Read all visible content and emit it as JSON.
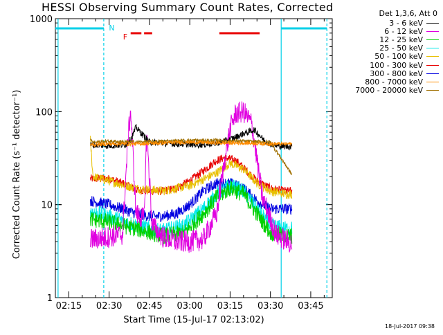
{
  "chart_data": {
    "type": "line",
    "title": "HESSI Observing Summary Count Rates, Corrected",
    "xlabel": "Start Time (15-Jul-17 02:13:02)",
    "ylabel": "Corrected Count Rate (s⁻¹ detector⁻¹)",
    "y_scale": "log",
    "ylim": [
      1,
      1000
    ],
    "xlim": [
      "02:10",
      "03:53"
    ],
    "x_ticks": [
      "02:15",
      "02:30",
      "02:45",
      "03:00",
      "03:15",
      "03:30",
      "03:45"
    ],
    "y_ticks": [
      "1",
      "10",
      "100",
      "1000"
    ],
    "legend_title": "Det 1,3,6, Att 0",
    "legend_position": "top-right",
    "series": [
      {
        "name": "3 - 6 keV",
        "color": "#000000",
        "x": [
          "02:23",
          "02:30",
          "02:36",
          "02:38",
          "02:40",
          "02:45",
          "02:55",
          "03:05",
          "03:10",
          "03:15",
          "03:20",
          "03:24",
          "03:28",
          "03:32",
          "03:38"
        ],
        "values": [
          44,
          43,
          44,
          50,
          68,
          47,
          45,
          44,
          46,
          50,
          58,
          64,
          48,
          43,
          42
        ]
      },
      {
        "name": "6 - 12 keV",
        "color": "#e000e0",
        "x": [
          "02:23",
          "02:30",
          "02:35",
          "02:37",
          "02:38",
          "02:40",
          "02:43",
          "02:44",
          "02:46",
          "02:50",
          "02:55",
          "03:00",
          "03:05",
          "03:10",
          "03:13",
          "03:15",
          "03:17",
          "03:20",
          "03:23",
          "03:27",
          "03:32",
          "03:38"
        ],
        "values": [
          4.2,
          4.5,
          4.8,
          50,
          105,
          8,
          7,
          62,
          6,
          4.5,
          4,
          4,
          4.2,
          8,
          30,
          65,
          95,
          100,
          75,
          12,
          4.8,
          3.8
        ]
      },
      {
        "name": "12 - 25 keV",
        "color": "#00d000",
        "x": [
          "02:23",
          "02:30",
          "02:40",
          "02:50",
          "02:58",
          "03:05",
          "03:10",
          "03:15",
          "03:20",
          "03:25",
          "03:30",
          "03:35",
          "03:38"
        ],
        "values": [
          7,
          6.5,
          5.5,
          4.6,
          5,
          8,
          12,
          15,
          13,
          8,
          5,
          4.6,
          4.6
        ]
      },
      {
        "name": "25 - 50 keV",
        "color": "#00e8e8",
        "x": [
          "02:23",
          "02:30",
          "02:40",
          "02:50",
          "02:58",
          "03:05",
          "03:10",
          "03:15",
          "03:20",
          "03:25",
          "03:30",
          "03:35",
          "03:38"
        ],
        "values": [
          8.5,
          7.5,
          6,
          5.2,
          6,
          9,
          13,
          16,
          14,
          9,
          6,
          5.5,
          5.5
        ]
      },
      {
        "name": "50 - 100 keV",
        "color": "#e8c000",
        "x": [
          "02:23",
          "02:24",
          "02:30",
          "02:40",
          "02:50",
          "03:00",
          "03:10",
          "03:15",
          "03:20",
          "03:25",
          "03:30",
          "03:36",
          "03:38"
        ],
        "values": [
          50,
          20,
          18,
          15,
          14,
          16,
          22,
          28,
          24,
          17,
          14,
          13,
          13
        ]
      },
      {
        "name": "100 - 300 keV",
        "color": "#e80000",
        "x": [
          "02:23",
          "02:30",
          "02:35",
          "02:40",
          "02:45",
          "02:50",
          "02:55",
          "03:00",
          "03:05",
          "03:10",
          "03:13",
          "03:17",
          "03:20",
          "03:25",
          "03:30",
          "03:35",
          "03:38"
        ],
        "values": [
          19,
          19,
          17,
          14.5,
          14,
          14,
          15,
          18,
          23,
          30,
          32,
          30,
          25,
          18,
          15,
          14,
          14
        ]
      },
      {
        "name": "300 - 800 keV",
        "color": "#0000e0",
        "x": [
          "02:23",
          "02:30",
          "02:35",
          "02:40",
          "02:45",
          "02:50",
          "02:55",
          "03:00",
          "03:05",
          "03:10",
          "03:15",
          "03:20",
          "03:25",
          "03:30",
          "03:35",
          "03:38"
        ],
        "values": [
          11,
          10,
          9,
          8,
          7.5,
          7.5,
          8,
          10,
          14,
          17,
          17,
          15,
          11,
          9,
          9,
          9
        ]
      },
      {
        "name": "800 - 7000 keV",
        "color": "#ff8c00",
        "x": [
          "02:23",
          "02:24",
          "02:30",
          "02:40",
          "02:50",
          "03:00",
          "03:10",
          "03:20",
          "03:30",
          "03:38"
        ],
        "values": [
          44,
          44,
          45,
          45,
          46,
          47,
          46,
          46,
          45,
          45
        ]
      },
      {
        "name": "7000 - 20000 keV",
        "color": "#a07000",
        "x": [
          "02:23",
          "02:24",
          "02:30",
          "02:40",
          "02:50",
          "03:00",
          "03:10",
          "03:20",
          "03:30",
          "03:38"
        ],
        "values": [
          52,
          47,
          48,
          47,
          48,
          49,
          49,
          48,
          47,
          21
        ]
      }
    ],
    "annotations": [
      {
        "text": "N",
        "color": "#00d0e8",
        "x": "02:31",
        "y": 800
      },
      {
        "text": "F",
        "color": "#e80000",
        "x": "02:36",
        "y": 640
      }
    ],
    "intervals": [
      {
        "type": "night",
        "color": "#00d0e8",
        "ranges": [
          [
            "02:10",
            "02:28"
          ],
          [
            "03:34",
            "03:51"
          ]
        ]
      },
      {
        "type": "flare",
        "color": "#e80000",
        "ranges": [
          [
            "02:38",
            "02:42"
          ],
          [
            "02:43",
            "02:46"
          ],
          [
            "03:11",
            "03:26"
          ]
        ]
      }
    ],
    "vertical_lines": [
      {
        "x": "02:11",
        "color": "#00d0e8",
        "style": "solid"
      },
      {
        "x": "02:28",
        "color": "#00d0e8",
        "style": "dashed"
      },
      {
        "x": "03:34",
        "color": "#00d0e8",
        "style": "solid"
      },
      {
        "x": "03:51",
        "color": "#00d0e8",
        "style": "dashed"
      }
    ]
  },
  "footer": {
    "timestamp": "18-Jul-2017 09:38"
  }
}
